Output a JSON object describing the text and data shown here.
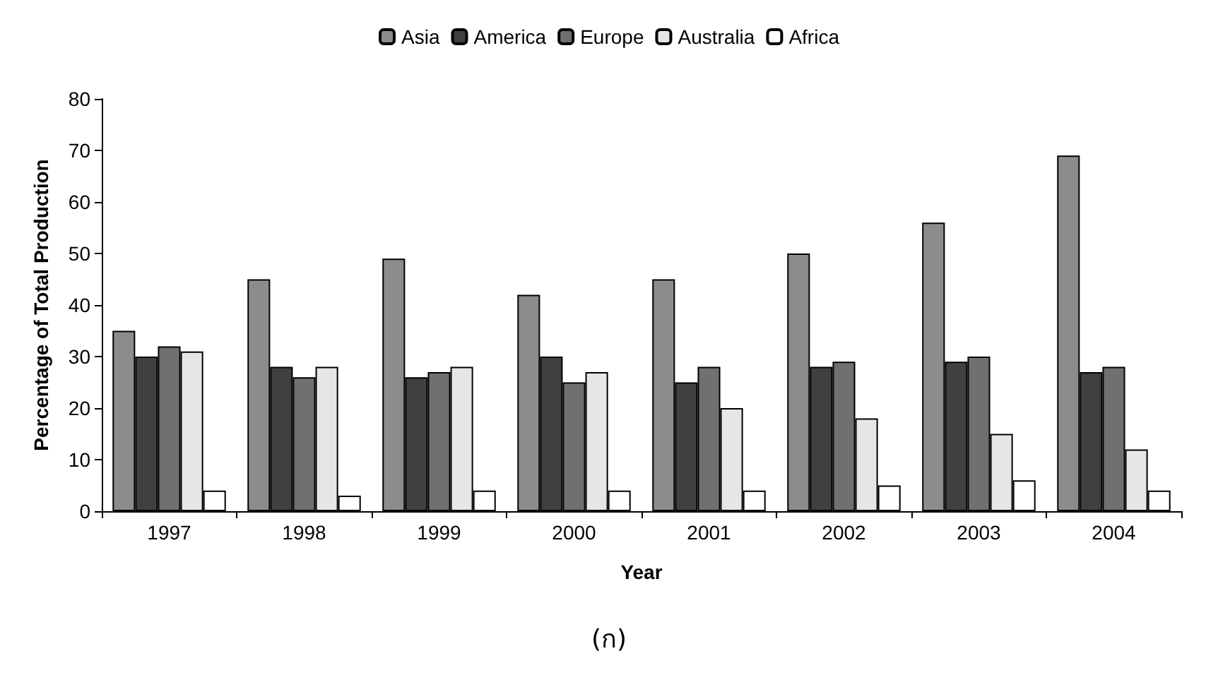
{
  "chart_data": {
    "type": "bar",
    "xlabel": "Year",
    "ylabel": "Percentage of Total Production",
    "categories": [
      "1997",
      "1998",
      "1999",
      "2000",
      "2001",
      "2002",
      "2003",
      "2004"
    ],
    "series": [
      {
        "name": "Asia",
        "color": "#8c8c8c",
        "values": [
          35,
          45,
          49,
          42,
          45,
          50,
          56,
          69
        ]
      },
      {
        "name": "America",
        "color": "#404040",
        "values": [
          30,
          28,
          26,
          30,
          25,
          28,
          29,
          27
        ]
      },
      {
        "name": "Europe",
        "color": "#707070",
        "values": [
          32,
          26,
          27,
          25,
          28,
          29,
          30,
          28
        ]
      },
      {
        "name": "Australia",
        "color": "#e6e6e6",
        "values": [
          31,
          28,
          28,
          27,
          20,
          18,
          15,
          12
        ]
      },
      {
        "name": "Africa",
        "color": "#ffffff",
        "values": [
          4,
          3,
          4,
          4,
          4,
          5,
          6,
          4
        ]
      }
    ],
    "ylim": [
      0,
      80
    ],
    "yticks": [
      0,
      10,
      20,
      30,
      40,
      50,
      60,
      70,
      80
    ],
    "grid": false,
    "legend": "top",
    "annotations": [
      "(ก)"
    ]
  }
}
